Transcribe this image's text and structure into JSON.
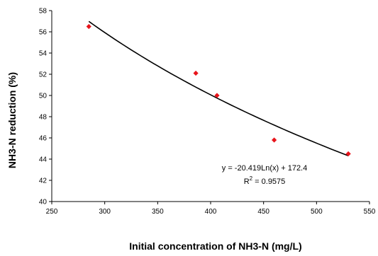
{
  "chart_data": {
    "type": "scatter",
    "title": "",
    "xlabel": "Initial concentration of NH3-N (mg/L)",
    "ylabel": "NH3-N reduction (%)",
    "xlim": [
      250,
      550
    ],
    "ylim": [
      40,
      58
    ],
    "xticks": [
      "250",
      "300",
      "350",
      "400",
      "450",
      "500",
      "550"
    ],
    "yticks": [
      "40",
      "42",
      "44",
      "46",
      "48",
      "50",
      "52",
      "54",
      "56",
      "58"
    ],
    "grid": false,
    "legend": "none",
    "series": [
      {
        "marker_color": "#e8141b",
        "x": [
          285,
          386,
          406,
          460,
          530
        ],
        "y": [
          56.5,
          52.1,
          50.0,
          45.8,
          44.5
        ]
      }
    ],
    "trendline": {
      "type": "logarithmic",
      "a": -20.419,
      "b": 172.4,
      "x_range": [
        285,
        530
      ],
      "color": "#000000",
      "equation": "y = -20.419Ln(x) + 172.4",
      "r2_label": "R",
      "r2_sup": "2",
      "r2_value": " = 0.9575"
    }
  }
}
